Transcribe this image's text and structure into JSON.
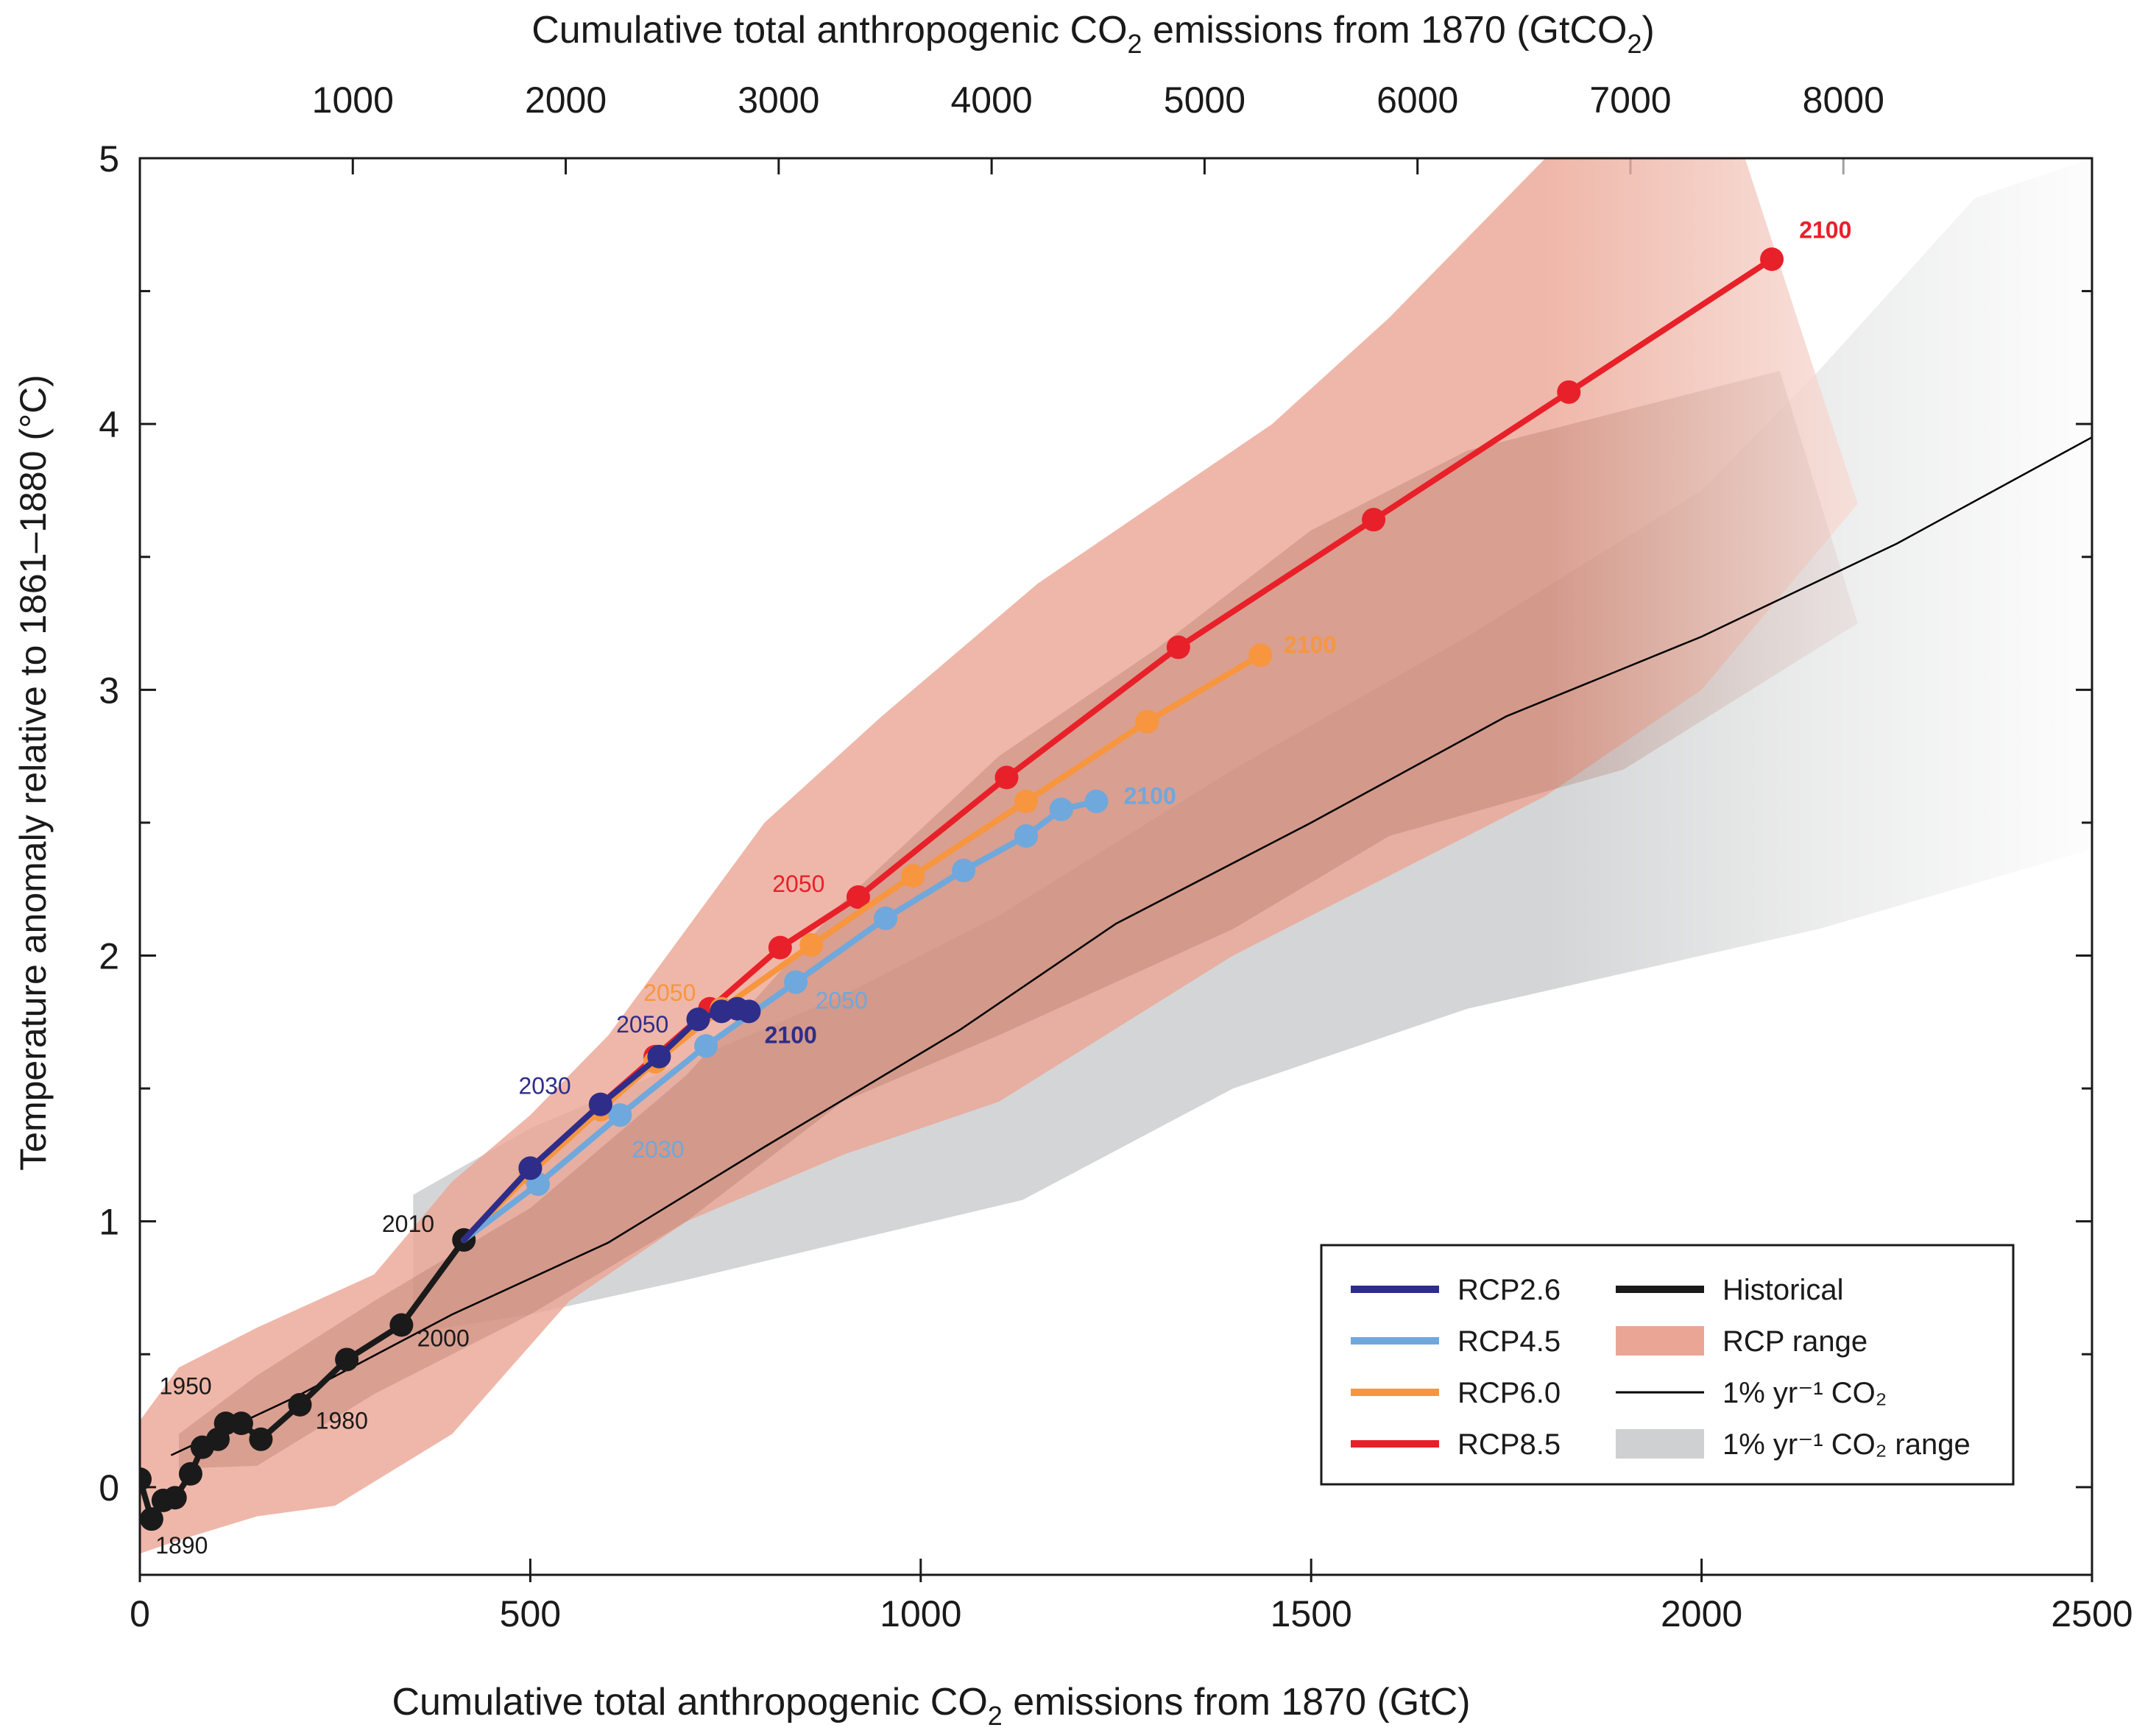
{
  "chart_data": {
    "type": "line",
    "top_axis_title_main": "Cumulative total anthropogenic CO",
    "top_axis_title_sub": "2",
    "top_axis_title_end": " emissions from 1870 (GtCO",
    "top_axis_title_sub2": "2",
    "top_axis_title_close": ")",
    "xlabel_main": "Cumulative total anthropogenic CO",
    "xlabel_sub": "2",
    "xlabel_end": " emissions from 1870 (GtC)",
    "ylabel": "Temperature anomaly relative to 1861–1880 (°C)",
    "xlim": [
      0,
      2500
    ],
    "ylim": [
      -0.33,
      5
    ],
    "x_ticks": [
      0,
      500,
      1000,
      1500,
      2000,
      2500
    ],
    "x_tick_labels": [
      "0",
      "500",
      "1000",
      "1500",
      "2000",
      "2500"
    ],
    "y_ticks": [
      0,
      1,
      2,
      3,
      4,
      5
    ],
    "y_tick_labels": [
      "0",
      "1",
      "2",
      "3",
      "4",
      "5"
    ],
    "top_ticks_gtco2": [
      1000,
      2000,
      3000,
      4000,
      5000,
      6000,
      7000,
      8000
    ],
    "top_tick_labels": [
      "1000",
      "2000",
      "3000",
      "4000",
      "5000",
      "6000",
      "7000",
      "8000"
    ],
    "gtco2_per_gtc": 3.667,
    "rcp_range": {
      "name": "RCP range",
      "color": "#e8998a",
      "upper": [
        [
          0,
          0.25
        ],
        [
          50,
          0.45
        ],
        [
          150,
          0.6
        ],
        [
          300,
          0.8
        ],
        [
          400,
          1.15
        ],
        [
          500,
          1.4
        ],
        [
          600,
          1.7
        ],
        [
          700,
          2.1
        ],
        [
          800,
          2.5
        ],
        [
          950,
          2.9
        ],
        [
          1150,
          3.4
        ],
        [
          1300,
          3.7
        ],
        [
          1450,
          4.0
        ],
        [
          1600,
          4.4
        ],
        [
          1800,
          5.0
        ],
        [
          2000,
          5.5
        ]
      ],
      "lower": [
        [
          2200,
          3.7
        ],
        [
          2000,
          3.0
        ],
        [
          1800,
          2.6
        ],
        [
          1600,
          2.3
        ],
        [
          1400,
          2.0
        ],
        [
          1100,
          1.45
        ],
        [
          900,
          1.25
        ],
        [
          700,
          1.0
        ],
        [
          550,
          0.7
        ],
        [
          400,
          0.2
        ],
        [
          250,
          -0.07
        ],
        [
          150,
          -0.11
        ],
        [
          50,
          -0.2
        ],
        [
          0,
          -0.25
        ]
      ]
    },
    "rcp_dark_range": {
      "upper": [
        [
          50,
          0.2
        ],
        [
          150,
          0.42
        ],
        [
          300,
          0.7
        ],
        [
          500,
          1.05
        ],
        [
          700,
          1.55
        ],
        [
          900,
          2.2
        ],
        [
          1100,
          2.75
        ],
        [
          1300,
          3.15
        ],
        [
          1500,
          3.6
        ],
        [
          1700,
          3.9
        ],
        [
          2100,
          4.2
        ]
      ],
      "lower": [
        [
          2200,
          3.25
        ],
        [
          1900,
          2.7
        ],
        [
          1600,
          2.45
        ],
        [
          1400,
          2.1
        ],
        [
          1100,
          1.7
        ],
        [
          900,
          1.45
        ],
        [
          700,
          1.0
        ],
        [
          500,
          0.65
        ],
        [
          300,
          0.35
        ],
        [
          150,
          0.08
        ],
        [
          50,
          0.07
        ]
      ]
    },
    "co2_range": {
      "name": "1% yr⁻¹ CO₂ range",
      "color": "#cfd0d1",
      "upper": [
        [
          350,
          1.1
        ],
        [
          500,
          1.35
        ],
        [
          700,
          1.6
        ],
        [
          900,
          1.85
        ],
        [
          1100,
          2.15
        ],
        [
          1400,
          2.7
        ],
        [
          1700,
          3.2
        ],
        [
          2000,
          3.75
        ],
        [
          2150,
          4.2
        ],
        [
          2350,
          4.85
        ],
        [
          2500,
          5.0
        ]
      ],
      "lower": [
        [
          2500,
          2.4
        ],
        [
          2150,
          2.1
        ],
        [
          1700,
          1.8
        ],
        [
          1400,
          1.5
        ],
        [
          1130,
          1.08
        ],
        [
          900,
          0.92
        ],
        [
          700,
          0.78
        ],
        [
          500,
          0.65
        ],
        [
          350,
          0.58
        ]
      ]
    },
    "co2_line": {
      "name": "1% yr⁻¹ CO₂",
      "color": "#000000",
      "points": [
        [
          40,
          0.12
        ],
        [
          200,
          0.34
        ],
        [
          400,
          0.65
        ],
        [
          600,
          0.92
        ],
        [
          800,
          1.28
        ],
        [
          1050,
          1.72
        ],
        [
          1250,
          2.12
        ],
        [
          1500,
          2.5
        ],
        [
          1750,
          2.9
        ],
        [
          2000,
          3.2
        ],
        [
          2250,
          3.55
        ],
        [
          2500,
          3.95
        ]
      ]
    },
    "series": [
      {
        "name": "Historical",
        "color": "#1a1a1a",
        "points": [
          [
            0,
            0.03
          ],
          [
            15,
            -0.12
          ],
          [
            30,
            -0.05
          ],
          [
            45,
            -0.04
          ],
          [
            65,
            0.05
          ],
          [
            80,
            0.15
          ],
          [
            100,
            0.18
          ],
          [
            110,
            0.24
          ],
          [
            130,
            0.24
          ],
          [
            155,
            0.18
          ],
          [
            205,
            0.31
          ],
          [
            265,
            0.48
          ],
          [
            335,
            0.61
          ],
          [
            415,
            0.93
          ]
        ]
      },
      {
        "name": "RCP8.5",
        "color": "#e8202a",
        "points": [
          [
            415,
            0.93
          ],
          [
            500,
            1.2
          ],
          [
            590,
            1.44
          ],
          [
            660,
            1.62
          ],
          [
            730,
            1.8
          ],
          [
            820,
            2.03
          ],
          [
            920,
            2.22
          ],
          [
            1110,
            2.67
          ],
          [
            1330,
            3.16
          ],
          [
            1580,
            3.64
          ],
          [
            1830,
            4.12
          ],
          [
            2090,
            4.62
          ]
        ]
      },
      {
        "name": "RCP6.0",
        "color": "#f7963e",
        "points": [
          [
            415,
            0.93
          ],
          [
            500,
            1.18
          ],
          [
            590,
            1.42
          ],
          [
            660,
            1.6
          ],
          [
            745,
            1.8
          ],
          [
            860,
            2.04
          ],
          [
            990,
            2.3
          ],
          [
            1135,
            2.58
          ],
          [
            1290,
            2.88
          ],
          [
            1435,
            3.13
          ]
        ]
      },
      {
        "name": "RCP4.5",
        "color": "#6fa8dc",
        "points": [
          [
            415,
            0.93
          ],
          [
            510,
            1.14
          ],
          [
            615,
            1.4
          ],
          [
            725,
            1.66
          ],
          [
            840,
            1.9
          ],
          [
            955,
            2.14
          ],
          [
            1055,
            2.32
          ],
          [
            1135,
            2.45
          ],
          [
            1180,
            2.55
          ],
          [
            1225,
            2.58
          ]
        ]
      },
      {
        "name": "RCP2.6",
        "color": "#2e2d8a",
        "points": [
          [
            415,
            0.93
          ],
          [
            500,
            1.2
          ],
          [
            590,
            1.44
          ],
          [
            665,
            1.62
          ],
          [
            715,
            1.76
          ],
          [
            745,
            1.79
          ],
          [
            765,
            1.8
          ],
          [
            780,
            1.79
          ]
        ]
      }
    ],
    "annotations": [
      {
        "text": "1890",
        "x": 20,
        "y": -0.25,
        "color": "#1a1a1a",
        "bold": false,
        "size": 32
      },
      {
        "text": "1950",
        "x": 25,
        "y": 0.35,
        "color": "#1a1a1a",
        "bold": false,
        "size": 32
      },
      {
        "text": "1980",
        "x": 225,
        "y": 0.22,
        "color": "#1a1a1a",
        "bold": false,
        "size": 32
      },
      {
        "text": "2000",
        "x": 355,
        "y": 0.53,
        "color": "#1a1a1a",
        "bold": false,
        "size": 32
      },
      {
        "text": "2010",
        "x": 310,
        "y": 0.96,
        "color": "#1a1a1a",
        "bold": false,
        "size": 32
      },
      {
        "text": "2030",
        "x": 485,
        "y": 1.48,
        "color": "#2e2d8a",
        "bold": false,
        "size": 32
      },
      {
        "text": "2050",
        "x": 610,
        "y": 1.71,
        "color": "#2e2d8a",
        "bold": false,
        "size": 32
      },
      {
        "text": "2100",
        "x": 800,
        "y": 1.67,
        "color": "#2e2d8a",
        "bold": true,
        "size": 32
      },
      {
        "text": "2030",
        "x": 630,
        "y": 1.24,
        "color": "#6fa8dc",
        "bold": false,
        "size": 32
      },
      {
        "text": "2050",
        "x": 865,
        "y": 1.8,
        "color": "#6fa8dc",
        "bold": false,
        "size": 32
      },
      {
        "text": "2100",
        "x": 1260,
        "y": 2.57,
        "color": "#6fa8dc",
        "bold": true,
        "size": 32
      },
      {
        "text": "2050",
        "x": 645,
        "y": 1.83,
        "color": "#f7963e",
        "bold": false,
        "size": 32
      },
      {
        "text": "2100",
        "x": 1465,
        "y": 3.14,
        "color": "#f7963e",
        "bold": true,
        "size": 32
      },
      {
        "text": "2050",
        "x": 810,
        "y": 2.24,
        "color": "#e8202a",
        "bold": false,
        "size": 32
      },
      {
        "text": "2100",
        "x": 2125,
        "y": 4.7,
        "color": "#e8202a",
        "bold": true,
        "size": 32
      }
    ],
    "legend": {
      "placement": "bottom-right",
      "items": [
        {
          "label": "RCP2.6",
          "color": "#2e2d8a",
          "kind": "line"
        },
        {
          "label": "RCP4.5",
          "color": "#6fa8dc",
          "kind": "line"
        },
        {
          "label": "RCP6.0",
          "color": "#f7963e",
          "kind": "line"
        },
        {
          "label": "RCP8.5",
          "color": "#e8202a",
          "kind": "line"
        },
        {
          "label": "Historical",
          "color": "#1a1a1a",
          "kind": "line"
        },
        {
          "label": "RCP range",
          "color": "#eba594",
          "kind": "patch"
        },
        {
          "label": "1% yr⁻¹ CO₂",
          "color": "#000000",
          "kind": "thin"
        },
        {
          "label": "1% yr⁻¹ CO₂ range",
          "color": "#cfd0d1",
          "kind": "patch"
        }
      ]
    }
  }
}
